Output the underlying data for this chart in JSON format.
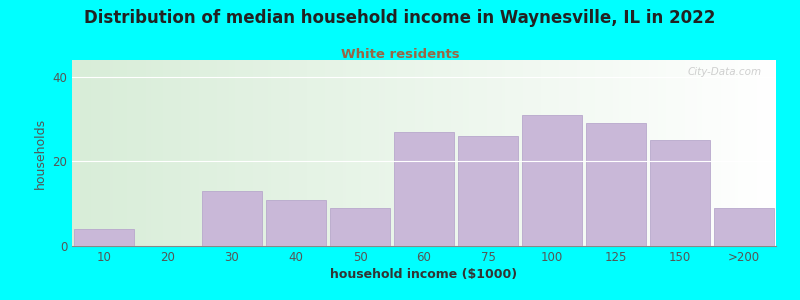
{
  "title": "Distribution of median household income in Waynesville, IL in 2022",
  "subtitle": "White residents",
  "xlabel": "household income ($1000)",
  "ylabel": "households",
  "bar_labels": [
    "10",
    "20",
    "30",
    "40",
    "50",
    "60",
    "75",
    "100",
    "125",
    "150",
    ">200"
  ],
  "bar_values": [
    4,
    0,
    13,
    11,
    9,
    27,
    26,
    31,
    29,
    25,
    9
  ],
  "bar_color": "#C9B8D8",
  "bar_edge_color": "#B8A8CC",
  "background_color": "#00FFFF",
  "plot_bg_left": "#D8EDD8",
  "plot_bg_right": "#FFFFFF",
  "title_color": "#222222",
  "subtitle_color": "#996644",
  "ylabel_color": "#555555",
  "xlabel_color": "#333333",
  "tick_color": "#555555",
  "ylim": [
    0,
    44
  ],
  "yticks": [
    0,
    20,
    40
  ],
  "watermark": "City-Data.com"
}
